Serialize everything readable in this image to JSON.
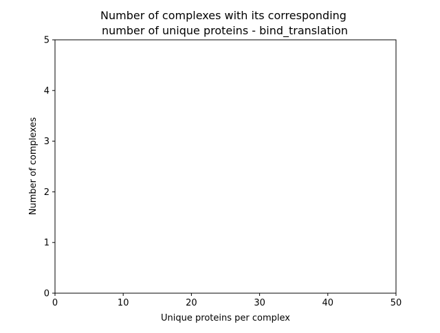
{
  "chart_data": {
    "type": "bar",
    "title_line1": "Number of complexes with its corresponding",
    "title_line2": "number of unique proteins - bind_translation",
    "xlabel": "Unique proteins per complex",
    "ylabel": "Number of complexes",
    "xlim": [
      0,
      50
    ],
    "ylim": [
      0,
      5
    ],
    "x_ticks": [
      "0",
      "10",
      "20",
      "30",
      "40",
      "50"
    ],
    "y_ticks": [
      "0",
      "1",
      "2",
      "3",
      "4",
      "5"
    ],
    "x": [],
    "values": [],
    "grid": false
  }
}
